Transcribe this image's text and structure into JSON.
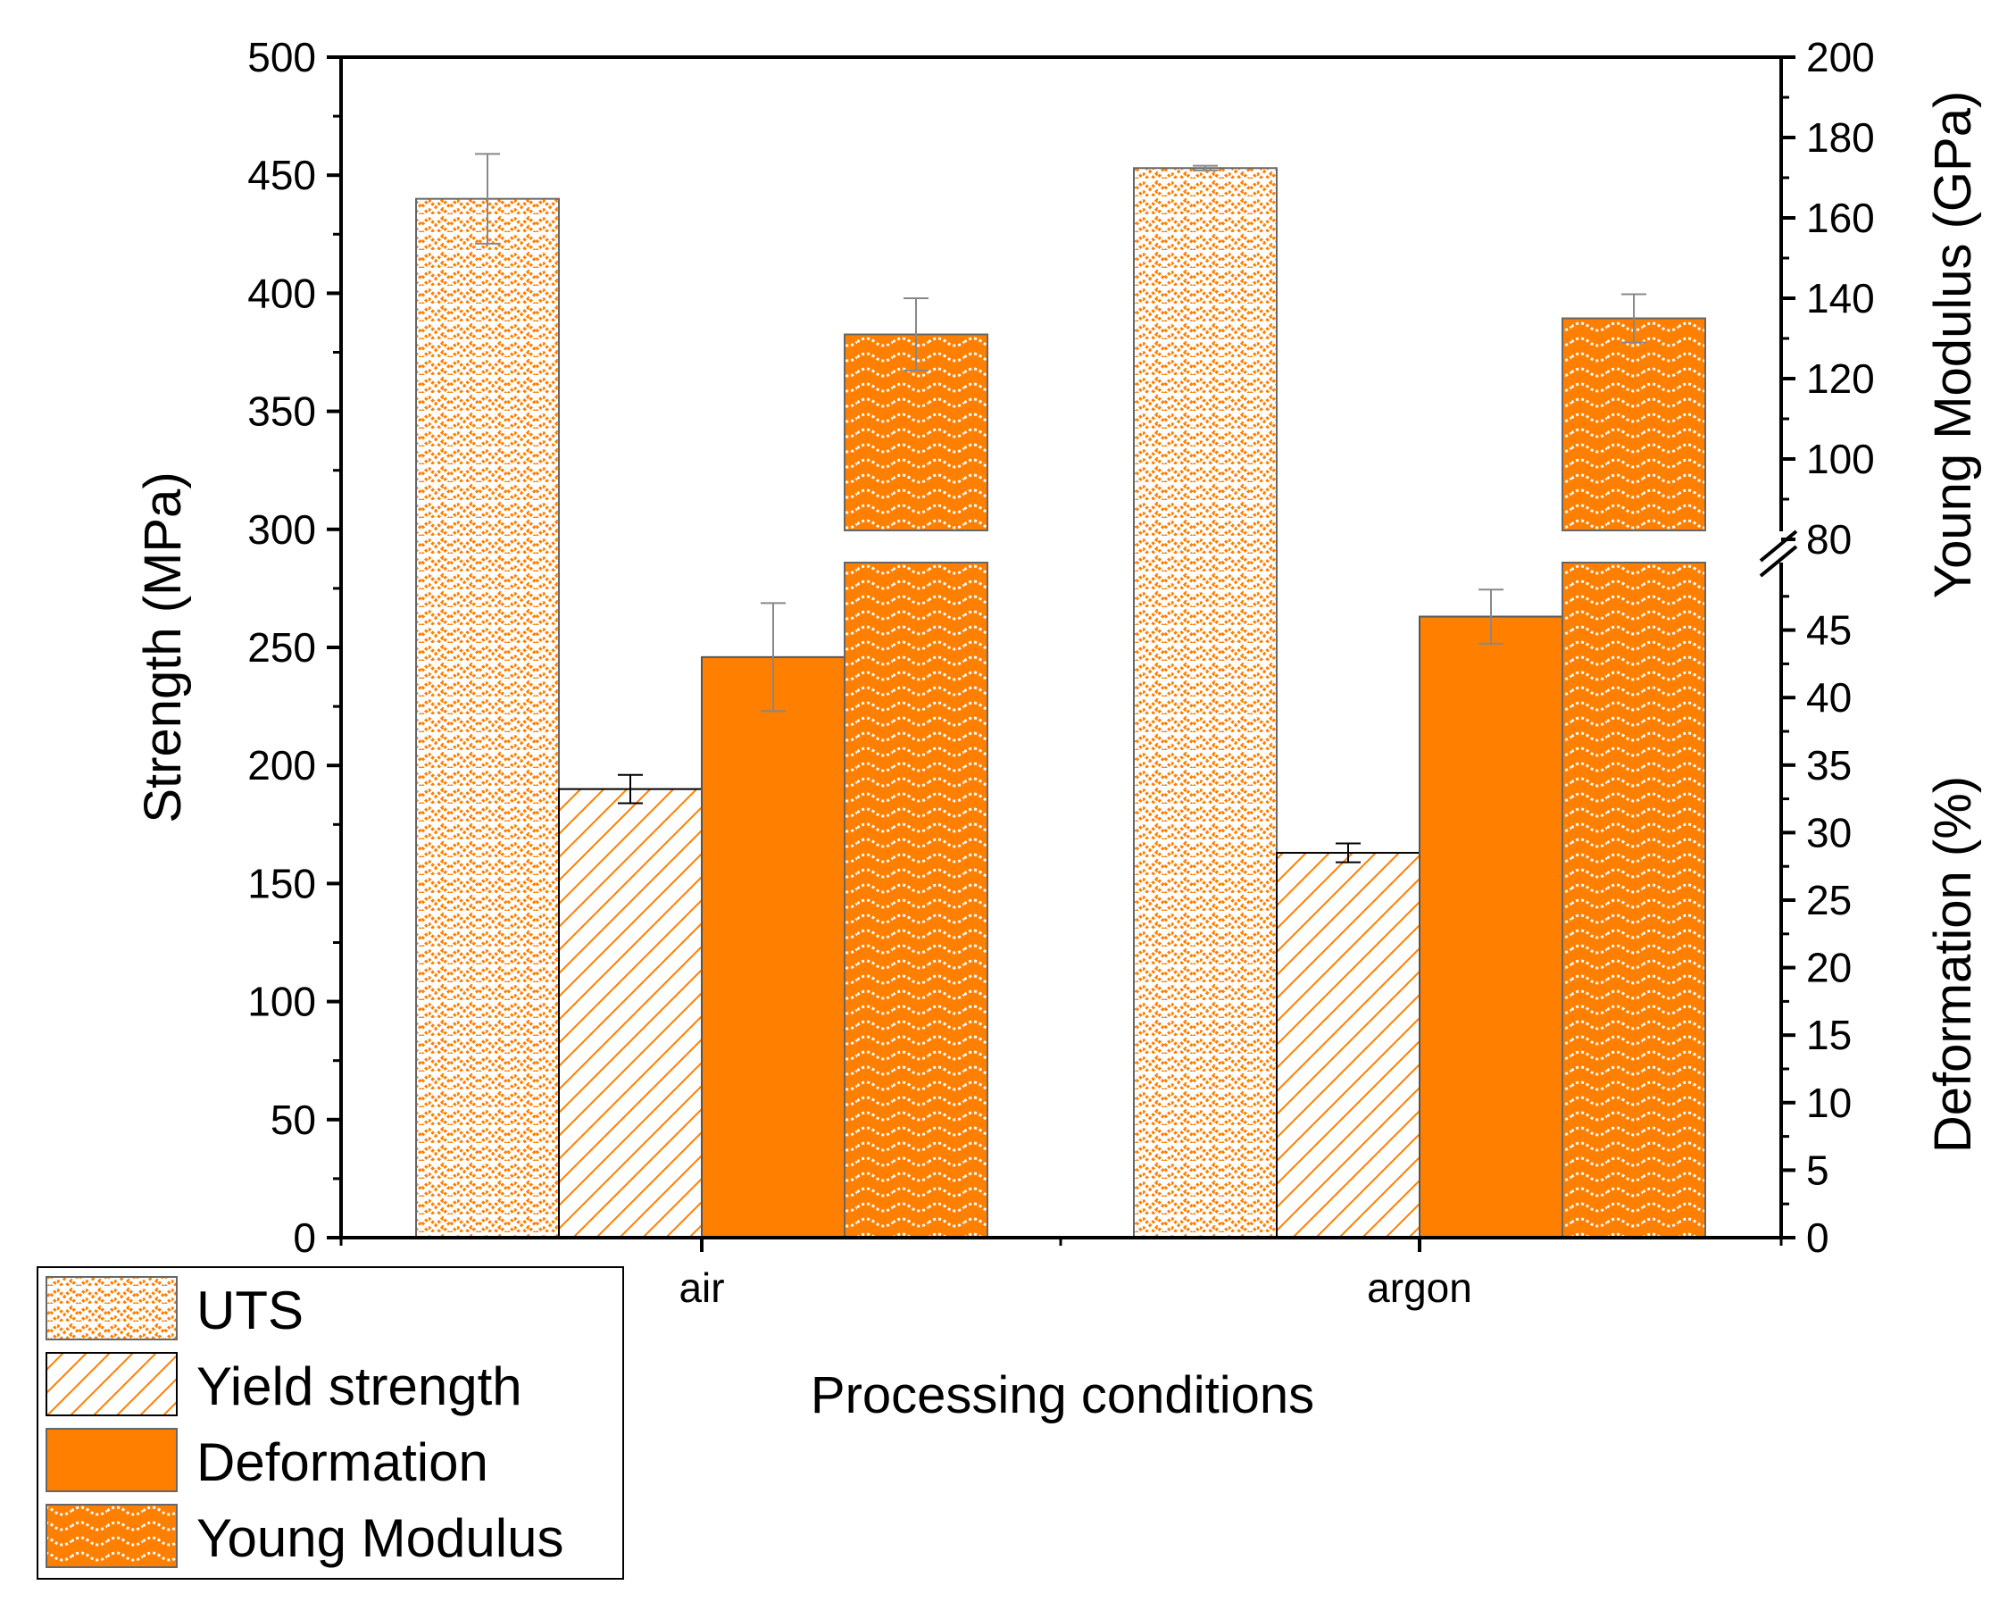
{
  "chart_data": {
    "type": "bar",
    "xlabel": "Processing conditions",
    "categories": [
      "air",
      "argon"
    ],
    "series": [
      {
        "name": "UTS",
        "axis": "strength",
        "values": [
          440,
          453
        ],
        "errors": [
          19,
          1
        ],
        "pattern": "zigzag"
      },
      {
        "name": "Yield strength",
        "axis": "strength",
        "values": [
          190,
          163
        ],
        "errors": [
          6,
          4
        ],
        "pattern": "hatch"
      },
      {
        "name": "Deformation",
        "axis": "deformation",
        "values": [
          43,
          46
        ],
        "errors": [
          4,
          2
        ],
        "pattern": "solid"
      },
      {
        "name": "Young Modulus",
        "axis": "modulus",
        "values": [
          131,
          135
        ],
        "errors": [
          9,
          6
        ],
        "pattern": "wave"
      }
    ],
    "axes": {
      "strength": {
        "label": "Strength (MPa)",
        "ylim": [
          0,
          500
        ],
        "ticks": [
          "0",
          "50",
          "100",
          "150",
          "200",
          "250",
          "300",
          "350",
          "400",
          "450",
          "500"
        ]
      },
      "deformation": {
        "label": "Deformation (%)",
        "ylim": [
          0,
          50
        ],
        "ticks": [
          "0",
          "5",
          "10",
          "15",
          "20",
          "25",
          "30",
          "35",
          "40",
          "45"
        ]
      },
      "modulus": {
        "label": "Young Modulus (GPa)",
        "ylim": [
          80,
          200
        ],
        "ticks": [
          "80",
          "100",
          "120",
          "140",
          "160",
          "180",
          "200"
        ]
      }
    },
    "colors": {
      "orange": "#ff7f00",
      "axis": "#000000",
      "errorbar": "#888888"
    }
  }
}
